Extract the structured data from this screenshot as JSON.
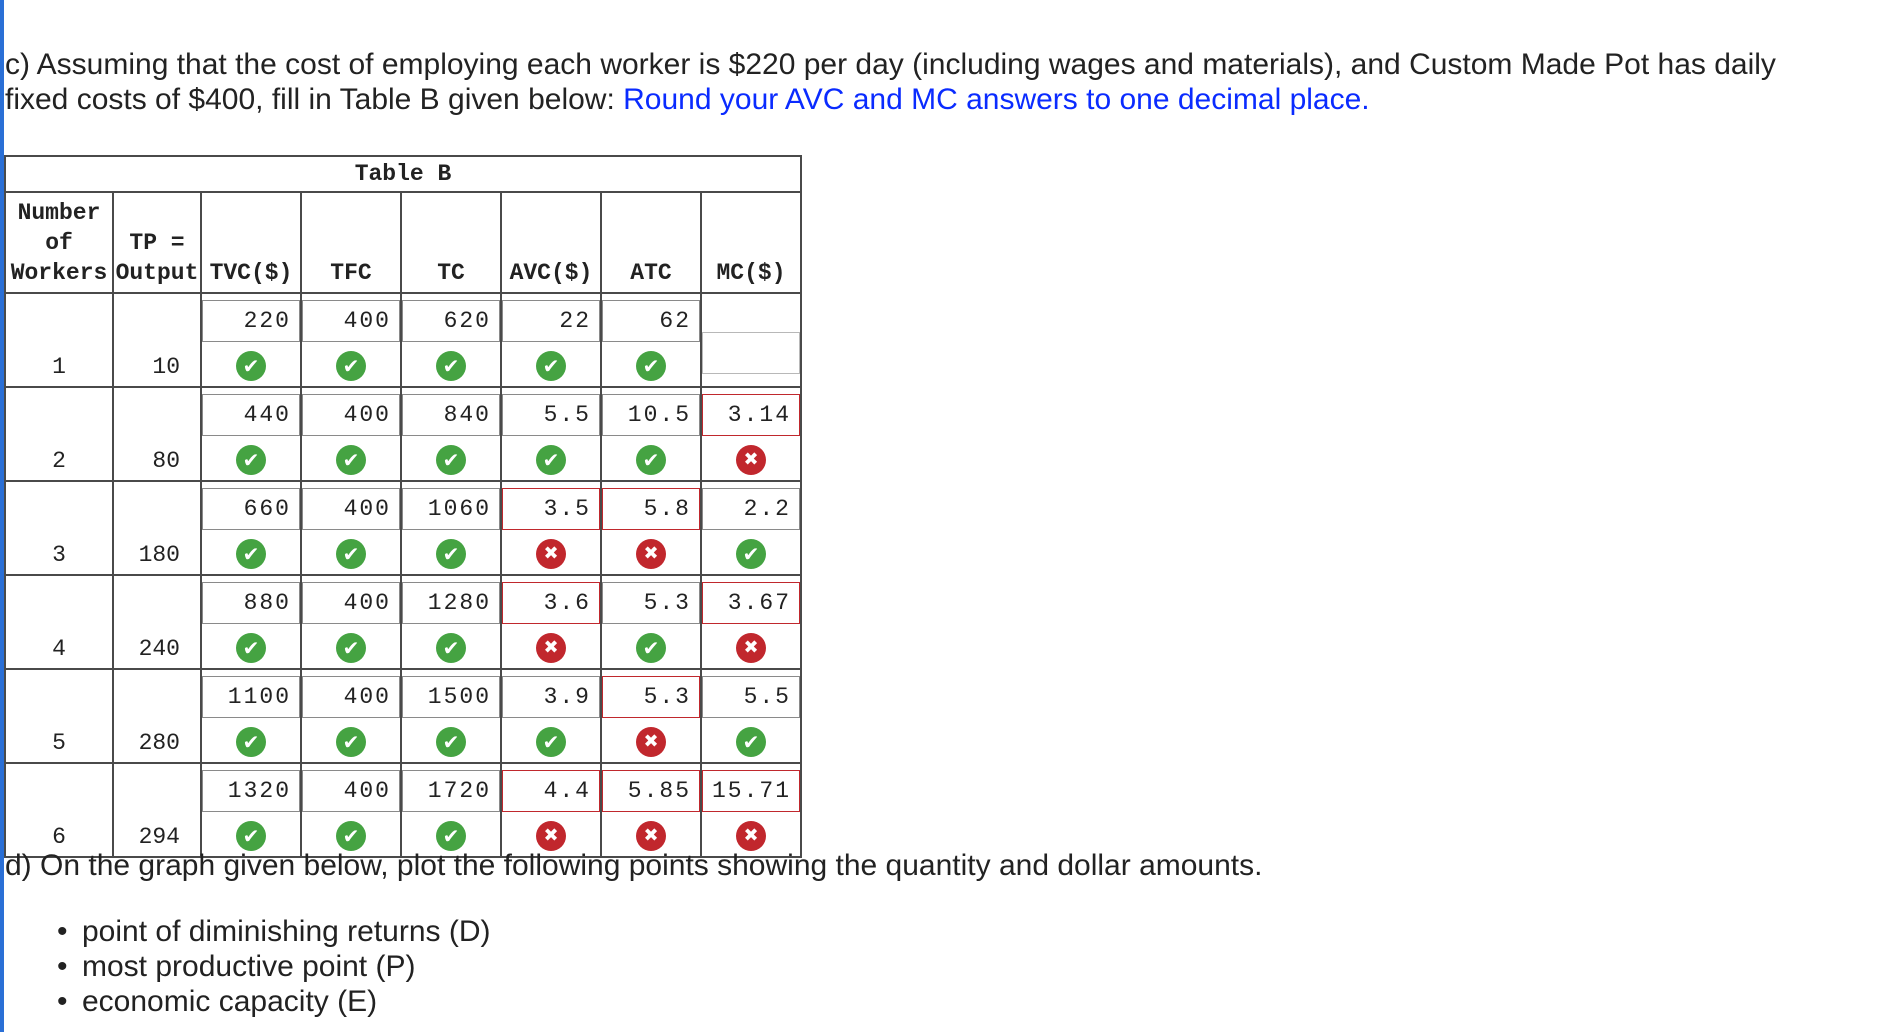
{
  "part_c": {
    "line1": "c) Assuming that the cost of employing each worker is $220 per day (including wages and materials), and Custom Made Pot has daily",
    "line2": "fixed costs of $400, fill in Table B given below: ",
    "instruction": "Round your AVC and MC answers to one decimal place."
  },
  "table": {
    "title": "Table B",
    "headers": {
      "workers": [
        "Number",
        "of",
        "Workers"
      ],
      "output": [
        "TP =",
        "Output"
      ],
      "tvc": "TVC($)",
      "tfc": "TFC",
      "tc": "TC",
      "avc": "AVC($)",
      "atc": "ATC",
      "mc": "MC($)"
    },
    "rows": [
      {
        "workers": "1",
        "output": "10",
        "tvc": {
          "value": "220",
          "status": "correct"
        },
        "tfc": {
          "value": "400",
          "status": "correct"
        },
        "tc": {
          "value": "620",
          "status": "correct"
        },
        "avc": {
          "value": "22",
          "status": "correct"
        },
        "atc": {
          "value": "62",
          "status": "correct"
        },
        "mc": {
          "value": "",
          "status": "none"
        }
      },
      {
        "workers": "2",
        "output": "80",
        "tvc": {
          "value": "440",
          "status": "correct"
        },
        "tfc": {
          "value": "400",
          "status": "correct"
        },
        "tc": {
          "value": "840",
          "status": "correct"
        },
        "avc": {
          "value": "5.5",
          "status": "correct"
        },
        "atc": {
          "value": "10.5",
          "status": "correct"
        },
        "mc": {
          "value": "3.14",
          "status": "incorrect"
        }
      },
      {
        "workers": "3",
        "output": "180",
        "tvc": {
          "value": "660",
          "status": "correct"
        },
        "tfc": {
          "value": "400",
          "status": "correct"
        },
        "tc": {
          "value": "1060",
          "status": "correct"
        },
        "avc": {
          "value": "3.5",
          "status": "incorrect"
        },
        "atc": {
          "value": "5.8",
          "status": "incorrect"
        },
        "mc": {
          "value": "2.2",
          "status": "correct"
        }
      },
      {
        "workers": "4",
        "output": "240",
        "tvc": {
          "value": "880",
          "status": "correct"
        },
        "tfc": {
          "value": "400",
          "status": "correct"
        },
        "tc": {
          "value": "1280",
          "status": "correct"
        },
        "avc": {
          "value": "3.6",
          "status": "incorrect"
        },
        "atc": {
          "value": "5.3",
          "status": "correct"
        },
        "mc": {
          "value": "3.67",
          "status": "incorrect"
        }
      },
      {
        "workers": "5",
        "output": "280",
        "tvc": {
          "value": "1100",
          "status": "correct"
        },
        "tfc": {
          "value": "400",
          "status": "correct"
        },
        "tc": {
          "value": "1500",
          "status": "correct"
        },
        "avc": {
          "value": "3.9",
          "status": "correct"
        },
        "atc": {
          "value": "5.3",
          "status": "incorrect"
        },
        "mc": {
          "value": "5.5",
          "status": "correct"
        }
      },
      {
        "workers": "6",
        "output": "294",
        "tvc": {
          "value": "1320",
          "status": "correct"
        },
        "tfc": {
          "value": "400",
          "status": "correct"
        },
        "tc": {
          "value": "1720",
          "status": "correct"
        },
        "avc": {
          "value": "4.4",
          "status": "incorrect"
        },
        "atc": {
          "value": "5.85",
          "status": "incorrect"
        },
        "mc": {
          "value": "15.71",
          "status": "incorrect"
        }
      }
    ]
  },
  "part_d": {
    "text": "d) On the graph given below, plot the following points showing the quantity and dollar amounts.",
    "bullets": [
      "point of diminishing returns (D)",
      "most productive point (P)",
      "economic capacity (E)"
    ]
  },
  "colors": {
    "correct": "#45a342",
    "incorrect": "#c1272d",
    "instruction": "#0a2bff"
  },
  "icons": {
    "correct": "check-icon",
    "incorrect": "x-icon"
  }
}
